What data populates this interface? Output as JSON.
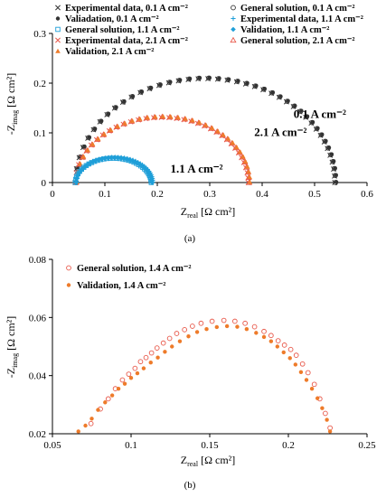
{
  "colors": {
    "black": "#333333",
    "blue": "#1f9fd8",
    "blue_fill": "#2aa8e0",
    "red": "#e8584a",
    "orange": "#ee7b2a",
    "axis": "#000000"
  },
  "chart_data": [
    {
      "type": "scatter",
      "subtitle": "(a)",
      "xlabel": "Z",
      "xlabel_sub": "real",
      "xlabel_unit": " [Ω cm²]",
      "ylabel": "-Z",
      "ylabel_sub": "imag",
      "ylabel_unit": " [Ω cm²]",
      "xlim": [
        0,
        0.6
      ],
      "ylim": [
        0,
        0.3
      ],
      "xticks": [
        0,
        0.1,
        0.2,
        0.3,
        0.4,
        0.5,
        0.6
      ],
      "xtick_labels": [
        "0",
        "0.1",
        "0.2",
        "0.3",
        "0.4",
        "0.5",
        "0.6"
      ],
      "yticks": [
        0,
        0.1,
        0.2,
        0.3
      ],
      "ytick_labels": [
        "0",
        "0.1",
        "0.2",
        "0.3"
      ],
      "grid": false,
      "legend_position": "top",
      "legend": [
        {
          "label": "Experimental data, 0.1 A cm⁻²",
          "marker": "x",
          "color": "#333333"
        },
        {
          "label": "General solution, 0.1 A cm⁻²",
          "marker": "circle-open",
          "color": "#333333"
        },
        {
          "label": "Valiadation, 0.1 A cm⁻²",
          "marker": "dot",
          "color": "#333333"
        },
        {
          "label": "Experimental data, 1.1 A cm⁻²",
          "marker": "plus",
          "color": "#1f9fd8"
        },
        {
          "label": "General solution, 1.1 A cm⁻²",
          "marker": "square-open",
          "color": "#1f9fd8"
        },
        {
          "label": "Validation, 1.1 A cm⁻²",
          "marker": "diamond",
          "color": "#1f9fd8"
        },
        {
          "label": "Experimental data, 2.1 A cm⁻²",
          "marker": "x",
          "color": "#e8584a"
        },
        {
          "label": "General solution, 2.1 A cm⁻²",
          "marker": "triangle-open",
          "color": "#e8584a"
        },
        {
          "label": "Validation, 2.1 A cm⁻²",
          "marker": "triangle",
          "color": "#ee7b2a"
        }
      ],
      "annotations": [
        {
          "text": "0.1 A cm⁻²",
          "x": 0.46,
          "y": 0.13
        },
        {
          "text": "2.1 A cm⁻²",
          "x": 0.385,
          "y": 0.094
        },
        {
          "text": "1.1 A cm⁻²",
          "x": 0.225,
          "y": 0.02
        }
      ],
      "arcs": [
        {
          "name": "0.1 A cm⁻²",
          "r_start": 0.045,
          "r_end": 0.54,
          "peak": 0.21,
          "n": 40,
          "color": "#333333",
          "markers": [
            "x",
            "circle-open",
            "dot"
          ]
        },
        {
          "name": "2.1 A cm⁻²",
          "r_start": 0.045,
          "r_end": 0.375,
          "peak": 0.132,
          "n": 34,
          "color": "#e8584a",
          "markers": [
            "x",
            "triangle-open",
            "triangle"
          ]
        },
        {
          "name": "1.1 A cm⁻²",
          "r_start": 0.045,
          "r_end": 0.19,
          "peak": 0.05,
          "n": 36,
          "color": "#1f9fd8",
          "markers": [
            "square-open",
            "diamond",
            "plus"
          ]
        }
      ]
    },
    {
      "type": "scatter",
      "subtitle": "(b)",
      "xlabel": "Z",
      "xlabel_sub": "real",
      "xlabel_unit": " [Ω cm²]",
      "ylabel": "-Z",
      "ylabel_sub": "imag",
      "ylabel_unit": " [Ω cm²]",
      "xlim": [
        0.05,
        0.25
      ],
      "ylim": [
        0.02,
        0.08
      ],
      "xticks": [
        0.05,
        0.1,
        0.15,
        0.2,
        0.25
      ],
      "xtick_labels": [
        "0.05",
        "0.1",
        "0.15",
        "0.2",
        "0.25"
      ],
      "yticks": [
        0.02,
        0.04,
        0.06,
        0.08
      ],
      "ytick_labels": [
        "0.02",
        "0.04",
        "0.06",
        "0.08"
      ],
      "grid": false,
      "legend_position": "top-left",
      "legend": [
        {
          "label": "General solution, 1.4 A cm⁻²",
          "marker": "circle-open",
          "color": "#e8584a"
        },
        {
          "label": "Validation, 1.4 A cm⁻²",
          "marker": "dot",
          "color": "#ee7b2a"
        }
      ],
      "series": [
        {
          "name": "General solution, 1.4 A cm⁻²",
          "x": [
            0.0745,
            0.0805,
            0.0855,
            0.09,
            0.0945,
            0.0985,
            0.1025,
            0.106,
            0.1095,
            0.113,
            0.1165,
            0.1205,
            0.1245,
            0.129,
            0.134,
            0.139,
            0.1445,
            0.1515,
            0.159,
            0.166,
            0.1725,
            0.1785,
            0.1845,
            0.189,
            0.1935,
            0.1975,
            0.2015,
            0.205,
            0.209,
            0.2125,
            0.2165,
            0.22,
            0.2235,
            0.2265
          ],
          "y": [
            0.0235,
            0.0285,
            0.032,
            0.0355,
            0.0385,
            0.0405,
            0.0425,
            0.0448,
            0.0462,
            0.0478,
            0.0495,
            0.0512,
            0.0528,
            0.0545,
            0.0558,
            0.057,
            0.058,
            0.0587,
            0.059,
            0.0587,
            0.058,
            0.0568,
            0.0552,
            0.0538,
            0.052,
            0.0505,
            0.049,
            0.047,
            0.044,
            0.041,
            0.037,
            0.032,
            0.027,
            0.022
          ]
        },
        {
          "name": "Validation, 1.4 A cm⁻²",
          "x": [
            0.0665,
            0.071,
            0.075,
            0.079,
            0.0835,
            0.088,
            0.092,
            0.096,
            0.1,
            0.104,
            0.108,
            0.1125,
            0.117,
            0.1215,
            0.126,
            0.131,
            0.1365,
            0.142,
            0.148,
            0.1545,
            0.161,
            0.1675,
            0.1735,
            0.1795,
            0.1845,
            0.189,
            0.193,
            0.197,
            0.201,
            0.2045,
            0.208,
            0.2115,
            0.215,
            0.2185,
            0.2215,
            0.2245,
            0.2265
          ],
          "y": [
            0.0208,
            0.0228,
            0.0252,
            0.0282,
            0.0308,
            0.0332,
            0.0355,
            0.0372,
            0.0392,
            0.0408,
            0.0425,
            0.0445,
            0.0462,
            0.0482,
            0.05,
            0.0518,
            0.0535,
            0.055,
            0.056,
            0.0567,
            0.057,
            0.0568,
            0.056,
            0.0547,
            0.0533,
            0.0518,
            0.05,
            0.048,
            0.046,
            0.0438,
            0.0412,
            0.0385,
            0.0355,
            0.0322,
            0.0288,
            0.0248,
            0.0208
          ]
        }
      ]
    }
  ]
}
